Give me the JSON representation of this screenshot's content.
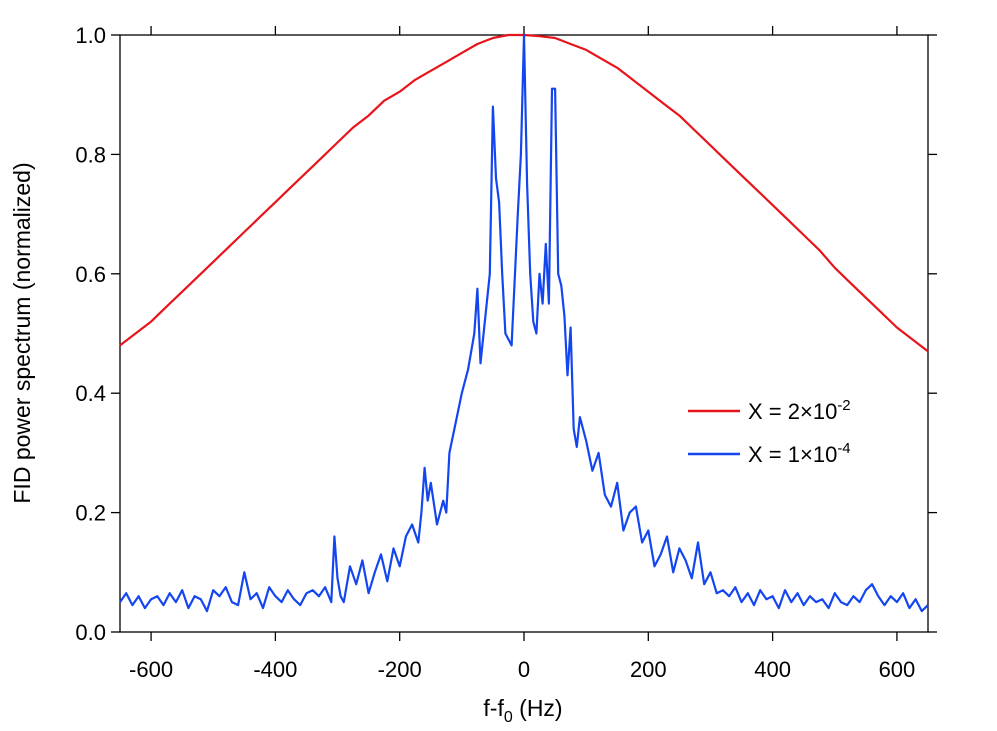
{
  "chart_data": {
    "type": "line",
    "title": "",
    "xlabel": {
      "base": "f-f",
      "sub": "0",
      "suffix": " (Hz)"
    },
    "ylabel": "FID power spectrum (normalized)",
    "xlim": [
      -650,
      650
    ],
    "ylim": [
      0.0,
      1.0
    ],
    "xticks": [
      -600,
      -400,
      -200,
      0,
      200,
      400,
      600
    ],
    "xtick_labels": [
      "-600",
      "-400",
      "-200",
      "0",
      "200",
      "400",
      "600"
    ],
    "yticks": [
      0.0,
      0.2,
      0.4,
      0.6,
      0.8,
      1.0
    ],
    "ytick_labels": [
      "0.0",
      "0.2",
      "0.4",
      "0.6",
      "0.8",
      "1.0"
    ],
    "grid": false,
    "legend_position": "right",
    "series": [
      {
        "name": "X = 2×10^-2",
        "label": {
          "base": "X = 2×10",
          "exp": "-2"
        },
        "color": "#e8141b",
        "x": [
          -650,
          -625,
          -600,
          -575,
          -550,
          -525,
          -500,
          -475,
          -450,
          -425,
          -400,
          -375,
          -350,
          -325,
          -300,
          -275,
          -250,
          -225,
          -200,
          -175,
          -150,
          -125,
          -100,
          -75,
          -50,
          -25,
          0,
          25,
          50,
          75,
          100,
          125,
          150,
          175,
          200,
          225,
          250,
          275,
          300,
          325,
          350,
          375,
          400,
          425,
          450,
          475,
          500,
          525,
          550,
          575,
          600,
          625,
          650
        ],
        "y": [
          0.48,
          0.5,
          0.52,
          0.545,
          0.57,
          0.595,
          0.62,
          0.645,
          0.67,
          0.695,
          0.72,
          0.745,
          0.77,
          0.795,
          0.82,
          0.845,
          0.865,
          0.89,
          0.905,
          0.925,
          0.94,
          0.955,
          0.97,
          0.985,
          0.995,
          1.0,
          1.0,
          0.998,
          0.995,
          0.985,
          0.975,
          0.96,
          0.945,
          0.925,
          0.905,
          0.885,
          0.865,
          0.84,
          0.815,
          0.79,
          0.765,
          0.74,
          0.715,
          0.69,
          0.665,
          0.64,
          0.61,
          0.585,
          0.56,
          0.535,
          0.51,
          0.49,
          0.47
        ]
      },
      {
        "name": "X = 1×10^-4",
        "label": {
          "base": "X = 1×10",
          "exp": "-4"
        },
        "color": "#1446f0",
        "x": [
          -650,
          -640,
          -630,
          -620,
          -610,
          -600,
          -590,
          -580,
          -570,
          -560,
          -550,
          -540,
          -530,
          -520,
          -510,
          -500,
          -490,
          -480,
          -470,
          -460,
          -450,
          -440,
          -430,
          -420,
          -410,
          -400,
          -390,
          -380,
          -370,
          -360,
          -350,
          -340,
          -330,
          -320,
          -310,
          -305,
          -300,
          -295,
          -290,
          -280,
          -270,
          -260,
          -250,
          -240,
          -230,
          -220,
          -210,
          -200,
          -190,
          -180,
          -170,
          -165,
          -160,
          -155,
          -150,
          -140,
          -130,
          -125,
          -120,
          -110,
          -100,
          -90,
          -80,
          -75,
          -70,
          -60,
          -55,
          -50,
          -45,
          -40,
          -35,
          -30,
          -20,
          -10,
          -5,
          0,
          5,
          10,
          15,
          20,
          25,
          30,
          35,
          40,
          45,
          50,
          55,
          60,
          65,
          70,
          75,
          80,
          85,
          90,
          100,
          110,
          120,
          130,
          140,
          150,
          160,
          170,
          180,
          190,
          200,
          210,
          220,
          230,
          240,
          250,
          260,
          270,
          280,
          290,
          300,
          310,
          320,
          330,
          340,
          350,
          360,
          370,
          380,
          390,
          400,
          410,
          420,
          430,
          440,
          450,
          460,
          470,
          480,
          490,
          500,
          510,
          520,
          530,
          540,
          550,
          560,
          570,
          580,
          590,
          600,
          610,
          620,
          630,
          640,
          650
        ],
        "y": [
          0.05,
          0.065,
          0.045,
          0.06,
          0.04,
          0.055,
          0.06,
          0.045,
          0.065,
          0.05,
          0.07,
          0.04,
          0.06,
          0.055,
          0.035,
          0.07,
          0.06,
          0.075,
          0.05,
          0.045,
          0.1,
          0.055,
          0.065,
          0.04,
          0.075,
          0.06,
          0.05,
          0.07,
          0.055,
          0.045,
          0.065,
          0.07,
          0.06,
          0.075,
          0.05,
          0.16,
          0.09,
          0.06,
          0.05,
          0.11,
          0.08,
          0.12,
          0.065,
          0.1,
          0.13,
          0.085,
          0.14,
          0.11,
          0.16,
          0.18,
          0.15,
          0.2,
          0.275,
          0.22,
          0.25,
          0.18,
          0.22,
          0.2,
          0.3,
          0.35,
          0.4,
          0.44,
          0.5,
          0.575,
          0.45,
          0.55,
          0.6,
          0.88,
          0.76,
          0.72,
          0.6,
          0.5,
          0.48,
          0.7,
          0.8,
          1.0,
          0.75,
          0.6,
          0.52,
          0.5,
          0.6,
          0.55,
          0.65,
          0.55,
          0.91,
          0.91,
          0.6,
          0.58,
          0.53,
          0.43,
          0.51,
          0.34,
          0.31,
          0.36,
          0.32,
          0.27,
          0.3,
          0.23,
          0.21,
          0.25,
          0.17,
          0.2,
          0.21,
          0.15,
          0.17,
          0.11,
          0.13,
          0.16,
          0.1,
          0.14,
          0.12,
          0.09,
          0.15,
          0.08,
          0.1,
          0.065,
          0.07,
          0.06,
          0.075,
          0.05,
          0.065,
          0.045,
          0.07,
          0.055,
          0.06,
          0.04,
          0.07,
          0.05,
          0.065,
          0.045,
          0.06,
          0.05,
          0.055,
          0.04,
          0.065,
          0.05,
          0.045,
          0.06,
          0.05,
          0.07,
          0.08,
          0.06,
          0.045,
          0.06,
          0.05,
          0.065,
          0.04,
          0.055,
          0.035,
          0.045
        ]
      }
    ]
  }
}
